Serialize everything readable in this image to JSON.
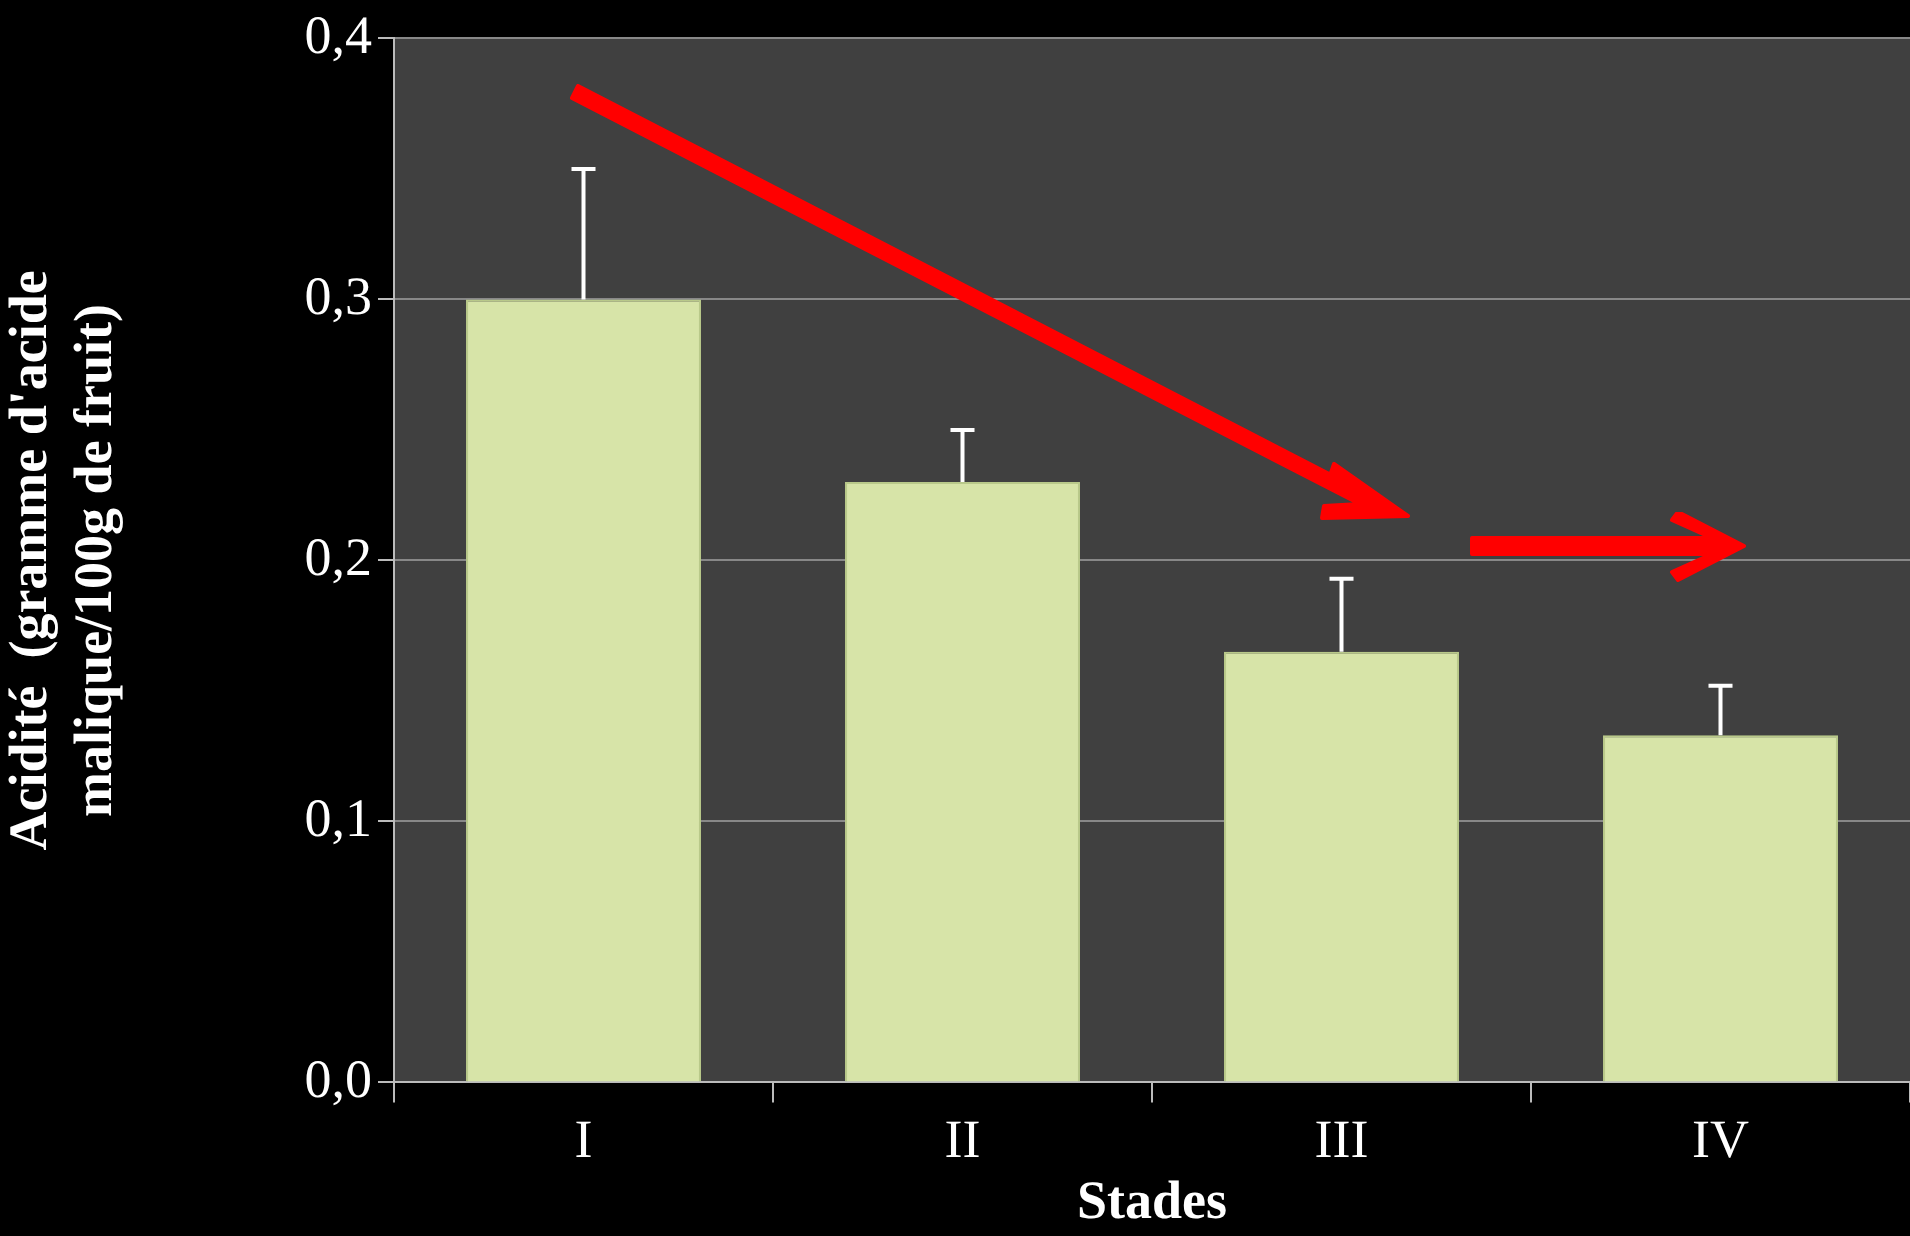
{
  "chart_data": {
    "type": "bar",
    "xlabel": "Stades",
    "ylabel": "Acidité  (gramme d'acide malique/100g de fruit)",
    "categories": [
      "I",
      "II",
      "III",
      "IV"
    ],
    "values": [
      0.3,
      0.23,
      0.165,
      0.133
    ],
    "errors": [
      [
        0.3,
        0.35
      ],
      [
        0.23,
        0.25
      ],
      [
        0.165,
        0.193
      ],
      [
        0.133,
        0.152
      ]
    ],
    "color": "#d7e4a8",
    "ylim": [
      0,
      0.4
    ],
    "yticks": [
      {
        "value": 0,
        "label": "0,0"
      },
      {
        "value": 0.1,
        "label": "0,1"
      },
      {
        "value": 0.2,
        "label": "0,2"
      },
      {
        "value": 0.3,
        "label": "0,3"
      },
      {
        "value": 0.4,
        "label": "0,4"
      }
    ],
    "grid": "y"
  }
}
